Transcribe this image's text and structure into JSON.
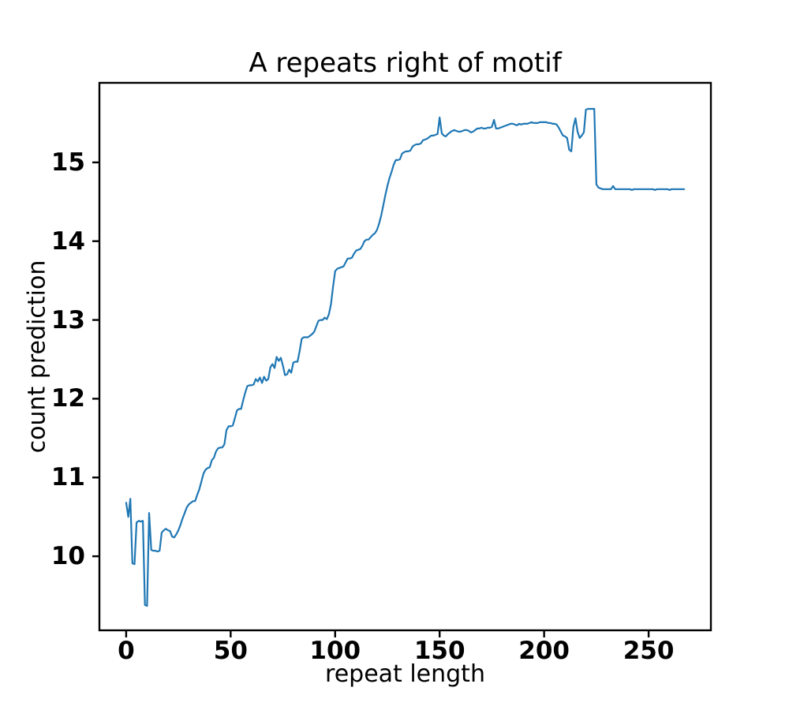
{
  "chart_data": {
    "type": "line",
    "title": "A repeats right of motif",
    "xlabel": "repeat length",
    "ylabel": "count prediction",
    "x_ticks": [
      0,
      50,
      100,
      150,
      200,
      250
    ],
    "y_ticks": [
      10,
      11,
      12,
      13,
      14,
      15
    ],
    "xlim": [
      -12.8,
      279.8
    ],
    "ylim": [
      9.06,
      16.01
    ],
    "grid": false,
    "legend": null,
    "axis_color": "#000000",
    "background_color": "#ffffff",
    "series": [
      {
        "name": "count prediction",
        "color": "#1f77b4",
        "points": [
          [
            0,
            10.68
          ],
          [
            1,
            10.5
          ],
          [
            2,
            10.73
          ],
          [
            3,
            9.91
          ],
          [
            4,
            9.9
          ],
          [
            5,
            10.43
          ],
          [
            6,
            10.45
          ],
          [
            7,
            10.44
          ],
          [
            8,
            10.45
          ],
          [
            9,
            9.38
          ],
          [
            10,
            9.37
          ],
          [
            11,
            10.55
          ],
          [
            12,
            10.08
          ],
          [
            13,
            10.07
          ],
          [
            14,
            10.07
          ],
          [
            15,
            10.06
          ],
          [
            16,
            10.07
          ],
          [
            17,
            10.3
          ],
          [
            18,
            10.33
          ],
          [
            19,
            10.35
          ],
          [
            20,
            10.33
          ],
          [
            21,
            10.32
          ],
          [
            22,
            10.25
          ],
          [
            23,
            10.24
          ],
          [
            24,
            10.28
          ],
          [
            25,
            10.33
          ],
          [
            26,
            10.4
          ],
          [
            27,
            10.48
          ],
          [
            28,
            10.55
          ],
          [
            29,
            10.62
          ],
          [
            30,
            10.66
          ],
          [
            31,
            10.68
          ],
          [
            32,
            10.7
          ],
          [
            33,
            10.7
          ],
          [
            34,
            10.78
          ],
          [
            35,
            10.85
          ],
          [
            36,
            10.95
          ],
          [
            37,
            11.05
          ],
          [
            38,
            11.1
          ],
          [
            39,
            11.12
          ],
          [
            40,
            11.13
          ],
          [
            41,
            11.22
          ],
          [
            42,
            11.25
          ],
          [
            43,
            11.33
          ],
          [
            44,
            11.37
          ],
          [
            45,
            11.38
          ],
          [
            46,
            11.38
          ],
          [
            47,
            11.42
          ],
          [
            48,
            11.6
          ],
          [
            49,
            11.65
          ],
          [
            50,
            11.65
          ],
          [
            51,
            11.66
          ],
          [
            52,
            11.75
          ],
          [
            53,
            11.85
          ],
          [
            54,
            11.87
          ],
          [
            55,
            11.87
          ],
          [
            56,
            11.98
          ],
          [
            57,
            12.08
          ],
          [
            58,
            12.16
          ],
          [
            59,
            12.17
          ],
          [
            60,
            12.17
          ],
          [
            61,
            12.18
          ],
          [
            62,
            12.25
          ],
          [
            63,
            12.22
          ],
          [
            64,
            12.27
          ],
          [
            65,
            12.2
          ],
          [
            66,
            12.28
          ],
          [
            67,
            12.23
          ],
          [
            68,
            12.25
          ],
          [
            69,
            12.4
          ],
          [
            70,
            12.44
          ],
          [
            71,
            12.39
          ],
          [
            72,
            12.53
          ],
          [
            73,
            12.48
          ],
          [
            74,
            12.52
          ],
          [
            75,
            12.42
          ],
          [
            76,
            12.3
          ],
          [
            77,
            12.31
          ],
          [
            78,
            12.37
          ],
          [
            79,
            12.33
          ],
          [
            80,
            12.46
          ],
          [
            81,
            12.47
          ],
          [
            82,
            12.47
          ],
          [
            83,
            12.6
          ],
          [
            84,
            12.76
          ],
          [
            85,
            12.78
          ],
          [
            86,
            12.78
          ],
          [
            87,
            12.78
          ],
          [
            88,
            12.8
          ],
          [
            89,
            12.82
          ],
          [
            90,
            12.85
          ],
          [
            91,
            12.92
          ],
          [
            92,
            12.99
          ],
          [
            93,
            13.0
          ],
          [
            94,
            13.0
          ],
          [
            95,
            13.03
          ],
          [
            96,
            13.01
          ],
          [
            97,
            13.07
          ],
          [
            98,
            13.2
          ],
          [
            99,
            13.42
          ],
          [
            100,
            13.62
          ],
          [
            101,
            13.65
          ],
          [
            102,
            13.66
          ],
          [
            103,
            13.67
          ],
          [
            104,
            13.68
          ],
          [
            105,
            13.73
          ],
          [
            106,
            13.78
          ],
          [
            107,
            13.78
          ],
          [
            108,
            13.79
          ],
          [
            109,
            13.84
          ],
          [
            110,
            13.88
          ],
          [
            111,
            13.89
          ],
          [
            112,
            13.9
          ],
          [
            113,
            13.94
          ],
          [
            114,
            14.0
          ],
          [
            115,
            14.02
          ],
          [
            116,
            14.02
          ],
          [
            117,
            14.05
          ],
          [
            118,
            14.08
          ],
          [
            119,
            14.1
          ],
          [
            120,
            14.14
          ],
          [
            121,
            14.22
          ],
          [
            122,
            14.32
          ],
          [
            123,
            14.45
          ],
          [
            124,
            14.58
          ],
          [
            125,
            14.7
          ],
          [
            126,
            14.8
          ],
          [
            127,
            14.88
          ],
          [
            128,
            14.97
          ],
          [
            129,
            15.03
          ],
          [
            130,
            15.03
          ],
          [
            131,
            15.04
          ],
          [
            132,
            15.11
          ],
          [
            133,
            15.13
          ],
          [
            134,
            15.14
          ],
          [
            135,
            15.14
          ],
          [
            136,
            15.15
          ],
          [
            137,
            15.2
          ],
          [
            138,
            15.22
          ],
          [
            139,
            15.23
          ],
          [
            140,
            15.23
          ],
          [
            141,
            15.24
          ],
          [
            142,
            15.28
          ],
          [
            143,
            15.29
          ],
          [
            144,
            15.3
          ],
          [
            145,
            15.32
          ],
          [
            146,
            15.34
          ],
          [
            147,
            15.34
          ],
          [
            148,
            15.35
          ],
          [
            149,
            15.36
          ],
          [
            150,
            15.57
          ],
          [
            151,
            15.37
          ],
          [
            152,
            15.34
          ],
          [
            153,
            15.33
          ],
          [
            154,
            15.36
          ],
          [
            155,
            15.38
          ],
          [
            156,
            15.4
          ],
          [
            157,
            15.41
          ],
          [
            158,
            15.4
          ],
          [
            159,
            15.39
          ],
          [
            160,
            15.39
          ],
          [
            161,
            15.4
          ],
          [
            162,
            15.41
          ],
          [
            163,
            15.41
          ],
          [
            164,
            15.4
          ],
          [
            165,
            15.38
          ],
          [
            166,
            15.39
          ],
          [
            167,
            15.41
          ],
          [
            168,
            15.43
          ],
          [
            169,
            15.43
          ],
          [
            170,
            15.44
          ],
          [
            171,
            15.43
          ],
          [
            172,
            15.43
          ],
          [
            173,
            15.44
          ],
          [
            174,
            15.44
          ],
          [
            175,
            15.45
          ],
          [
            176,
            15.54
          ],
          [
            177,
            15.43
          ],
          [
            178,
            15.43
          ],
          [
            179,
            15.44
          ],
          [
            180,
            15.45
          ],
          [
            181,
            15.46
          ],
          [
            182,
            15.47
          ],
          [
            183,
            15.48
          ],
          [
            184,
            15.49
          ],
          [
            185,
            15.49
          ],
          [
            186,
            15.48
          ],
          [
            187,
            15.47
          ],
          [
            188,
            15.49
          ],
          [
            189,
            15.48
          ],
          [
            190,
            15.49
          ],
          [
            191,
            15.49
          ],
          [
            192,
            15.49
          ],
          [
            193,
            15.5
          ],
          [
            194,
            15.51
          ],
          [
            195,
            15.5
          ],
          [
            196,
            15.5
          ],
          [
            197,
            15.5
          ],
          [
            198,
            15.51
          ],
          [
            199,
            15.51
          ],
          [
            200,
            15.51
          ],
          [
            201,
            15.51
          ],
          [
            202,
            15.5
          ],
          [
            203,
            15.5
          ],
          [
            204,
            15.49
          ],
          [
            205,
            15.49
          ],
          [
            206,
            15.48
          ],
          [
            207,
            15.44
          ],
          [
            208,
            15.39
          ],
          [
            209,
            15.34
          ],
          [
            210,
            15.33
          ],
          [
            211,
            15.31
          ],
          [
            212,
            15.16
          ],
          [
            213,
            15.14
          ],
          [
            214,
            15.45
          ],
          [
            215,
            15.56
          ],
          [
            216,
            15.39
          ],
          [
            217,
            15.31
          ],
          [
            218,
            15.34
          ],
          [
            219,
            15.38
          ],
          [
            220,
            15.67
          ],
          [
            221,
            15.68
          ],
          [
            222,
            15.68
          ],
          [
            223,
            15.68
          ],
          [
            224,
            15.68
          ],
          [
            225,
            14.72
          ],
          [
            226,
            14.68
          ],
          [
            227,
            14.67
          ],
          [
            228,
            14.66
          ],
          [
            229,
            14.66
          ],
          [
            230,
            14.66
          ],
          [
            231,
            14.66
          ],
          [
            232,
            14.66
          ],
          [
            233,
            14.7
          ],
          [
            234,
            14.66
          ],
          [
            235,
            14.66
          ],
          [
            236,
            14.66
          ],
          [
            237,
            14.66
          ],
          [
            238,
            14.66
          ],
          [
            239,
            14.66
          ],
          [
            240,
            14.66
          ],
          [
            241,
            14.66
          ],
          [
            242,
            14.65
          ],
          [
            243,
            14.66
          ],
          [
            244,
            14.66
          ],
          [
            245,
            14.66
          ],
          [
            246,
            14.66
          ],
          [
            247,
            14.66
          ],
          [
            248,
            14.66
          ],
          [
            249,
            14.66
          ],
          [
            250,
            14.66
          ],
          [
            251,
            14.66
          ],
          [
            252,
            14.66
          ],
          [
            253,
            14.65
          ],
          [
            254,
            14.66
          ],
          [
            255,
            14.66
          ],
          [
            256,
            14.66
          ],
          [
            257,
            14.66
          ],
          [
            258,
            14.66
          ],
          [
            259,
            14.66
          ],
          [
            260,
            14.65
          ],
          [
            261,
            14.66
          ],
          [
            262,
            14.66
          ],
          [
            263,
            14.66
          ],
          [
            264,
            14.66
          ],
          [
            265,
            14.66
          ],
          [
            266,
            14.66
          ],
          [
            267,
            14.66
          ]
        ]
      }
    ]
  }
}
